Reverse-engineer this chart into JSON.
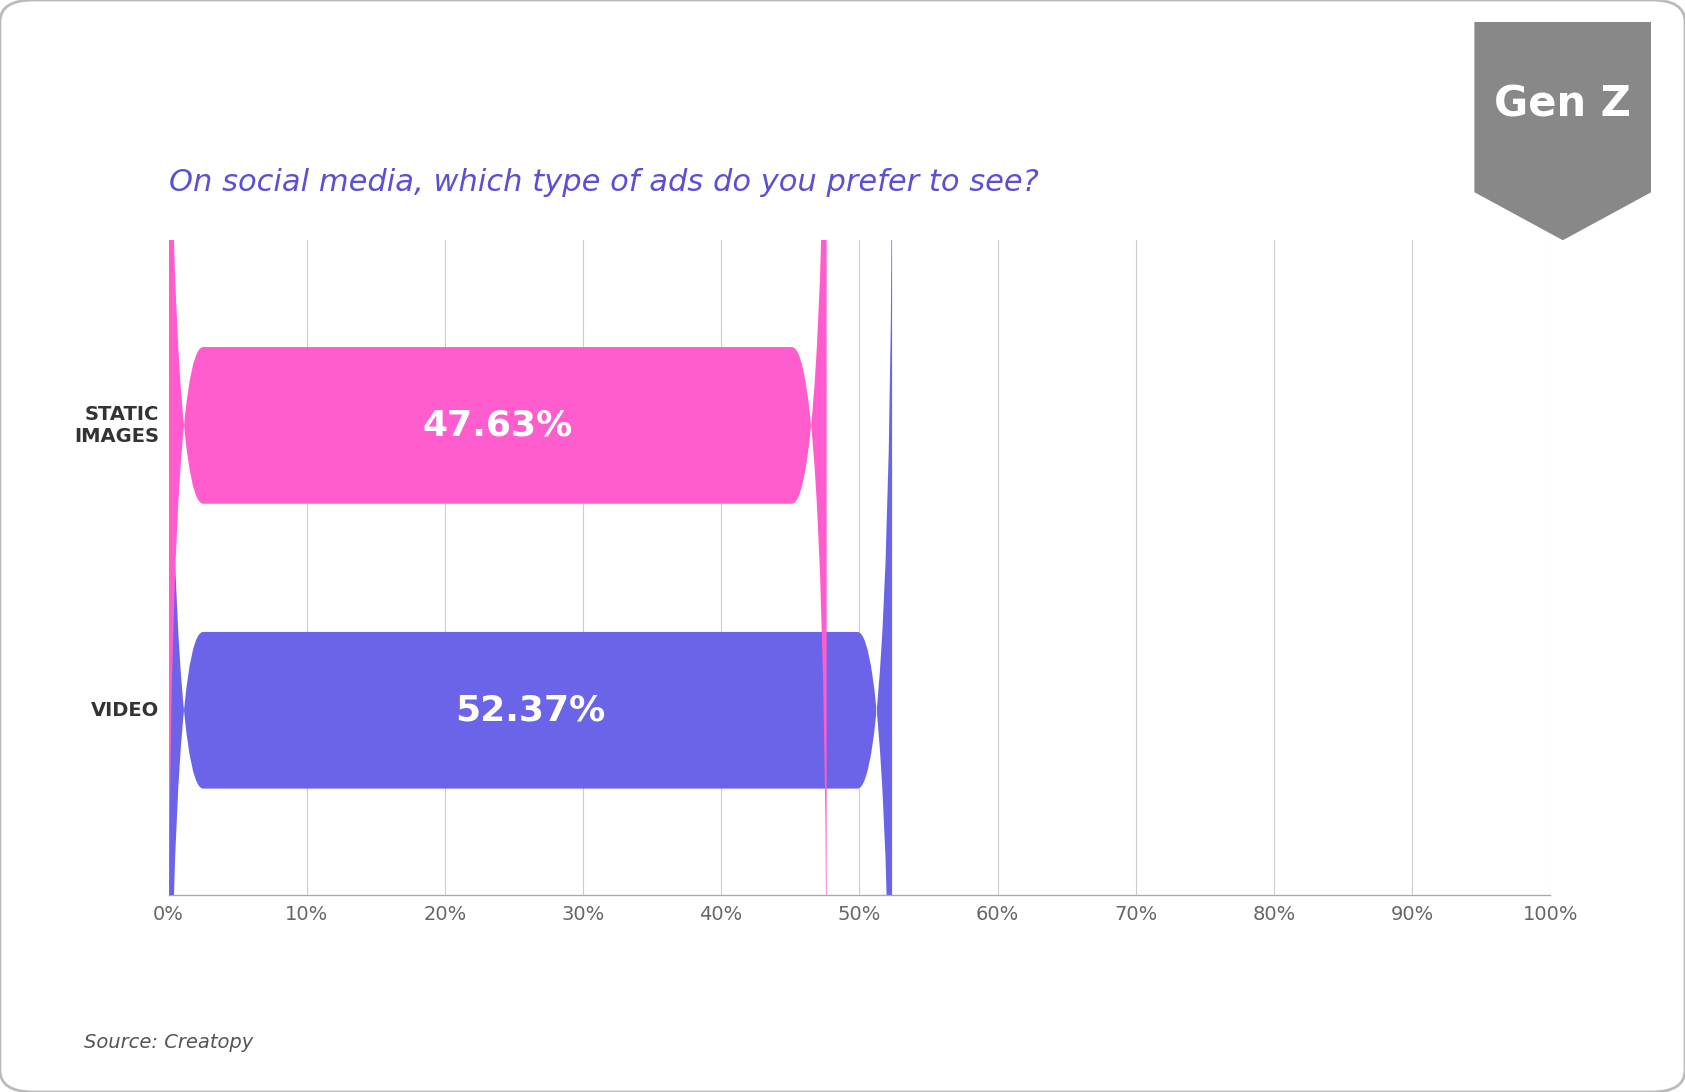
{
  "title": "On social media, which type of ads do you prefer to see?",
  "title_color": "#5b4fd4",
  "title_fontsize": 22,
  "title_style": "italic",
  "categories": [
    "VIDEO",
    "STATIC\nIMAGES"
  ],
  "values": [
    52.37,
    47.63
  ],
  "bar_colors": [
    "#6b63e8",
    "#ff5dcd"
  ],
  "bar_labels": [
    "52.37%",
    "47.63%"
  ],
  "label_color": "#ffffff",
  "label_fontsize": 26,
  "label_fontweight": "bold",
  "xlim": [
    0,
    100
  ],
  "xticks": [
    0,
    10,
    20,
    30,
    40,
    50,
    60,
    70,
    80,
    90,
    100
  ],
  "xtick_labels": [
    "0%",
    "10%",
    "20%",
    "30%",
    "40%",
    "50%",
    "60%",
    "70%",
    "80%",
    "90%",
    "100%"
  ],
  "xtick_fontsize": 14,
  "ytick_fontsize": 14,
  "ytick_fontweight": "bold",
  "grid_color": "#cccccc",
  "background_color": "#ffffff",
  "source_text": "Source: Creatopy",
  "source_fontsize": 14,
  "source_color": "#555555",
  "source_style": "italic",
  "genz_label": "Gen Z",
  "genz_bg_color": "#888888",
  "genz_text_color": "#ffffff",
  "border_color": "#bbbbbb",
  "bar_height": 0.55
}
